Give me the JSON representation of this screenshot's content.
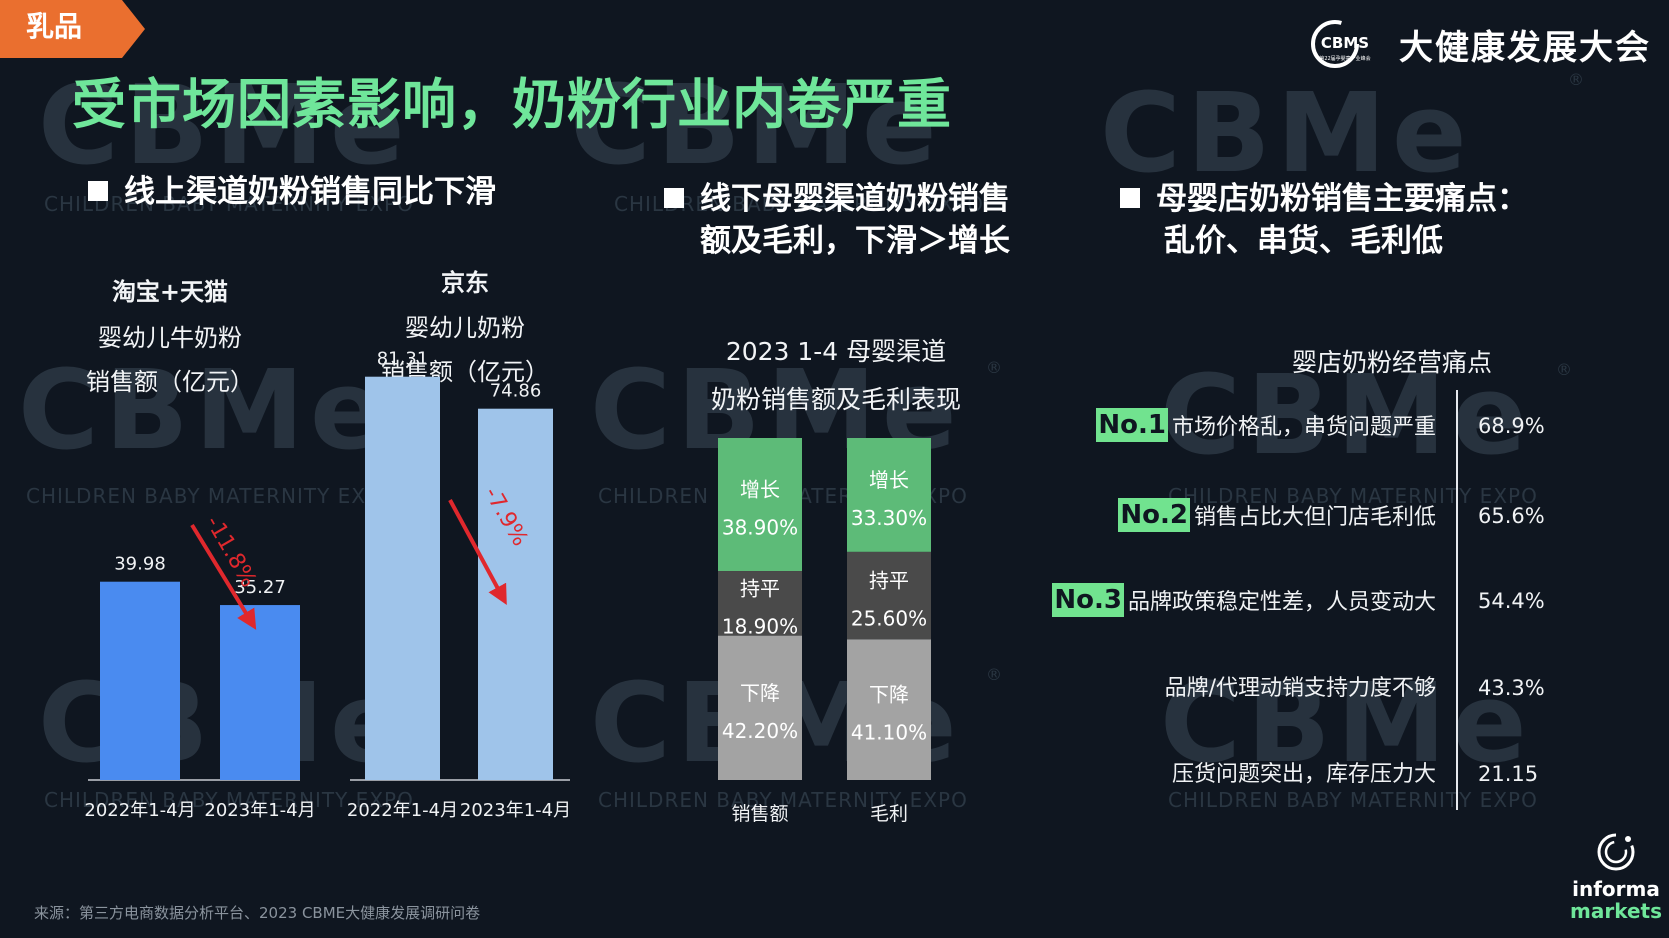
{
  "tag": "乳品",
  "brand": {
    "logo_text": "CBMS",
    "logo_sub": "第22届孕婴童产业峰会",
    "name": "大健康发展大会"
  },
  "title": "受市场因素影响，奶粉行业内卷严重",
  "watermark": {
    "big": "CBMe",
    "sub": "CHILDREN BABY MATERNITY EXPO",
    "reg": "®"
  },
  "section1": {
    "bullet": "线上渠道奶粉销售同比下滑",
    "tmall_title": "淘宝+天猫",
    "tmall_sub1": "婴幼儿牛奶粉",
    "tmall_sub2": "销售额（亿元）",
    "jd_title": "京东",
    "jd_sub1": "婴幼儿奶粉",
    "jd_sub2": "销售额（亿元）"
  },
  "section2": {
    "bullet_line1": "线下母婴渠道奶粉销售",
    "bullet_line2": "额及毛利，下滑＞增长",
    "chart_title1": "2023 1-4 母婴渠道",
    "chart_title2": "奶粉销售额及毛利表现"
  },
  "section3": {
    "bullet_line1": "母婴店奶粉销售主要痛点：",
    "bullet_line2": "乱价、串货、毛利低",
    "chart_title": "婴店奶粉经营痛点"
  },
  "source": "来源：第三方电商数据分析平台、2023 CBME大健康发展调研问卷",
  "informa": {
    "line1": "informa",
    "line2": "markets"
  },
  "colors": {
    "title_green": "#6fe69a",
    "orange": "#ea6f2f",
    "tmall_blue": "#4a8bf0",
    "jd_blue": "#9fc4ea",
    "growth_green": "#5dbb78",
    "flat_gray": "#4a4a4a",
    "decline_gray": "#a3a3a3",
    "arrow_red": "#e0282d",
    "badge_green": "#71e38f"
  },
  "chart_data": [
    {
      "type": "bar",
      "id": "tmall",
      "categories": [
        "2022年1-4月",
        "2023年1-4月"
      ],
      "values": [
        39.98,
        35.27
      ],
      "value_labels": [
        "39.98",
        "35.27"
      ],
      "annotation": "-11.8%",
      "ylim": [
        0,
        90
      ]
    },
    {
      "type": "bar",
      "id": "jd",
      "categories": [
        "2022年1-4月",
        "2023年1-4月"
      ],
      "values": [
        81.31,
        74.86
      ],
      "value_labels": [
        "81.31",
        "74.86"
      ],
      "annotation": "-7.9%",
      "ylim": [
        0,
        90
      ]
    },
    {
      "type": "bar",
      "id": "channel",
      "stacked": true,
      "categories": [
        "销售额",
        "毛利"
      ],
      "series": [
        {
          "name": "增长",
          "values": [
            38.9,
            33.3
          ],
          "labels": [
            "38.90%",
            "33.30%"
          ]
        },
        {
          "name": "持平",
          "values": [
            18.9,
            25.6
          ],
          "labels": [
            "18.90%",
            "25.60%"
          ]
        },
        {
          "name": "下降",
          "values": [
            42.2,
            41.1
          ],
          "labels": [
            "42.20%",
            "41.10%"
          ]
        }
      ]
    },
    {
      "type": "table",
      "id": "pain_points",
      "rows": [
        {
          "rank": "No.1",
          "label": "市场价格乱，串货问题严重",
          "value": "68.9%"
        },
        {
          "rank": "No.2",
          "label": "销售占比大但门店毛利低",
          "value": "65.6%"
        },
        {
          "rank": "No.3",
          "label": "品牌政策稳定性差，人员变动大",
          "value": "54.4%"
        },
        {
          "rank": "",
          "label": "品牌/代理动销支持力度不够",
          "value": "43.3%"
        },
        {
          "rank": "",
          "label": "压货问题突出，库存压力大",
          "value": "21.15"
        }
      ]
    }
  ]
}
